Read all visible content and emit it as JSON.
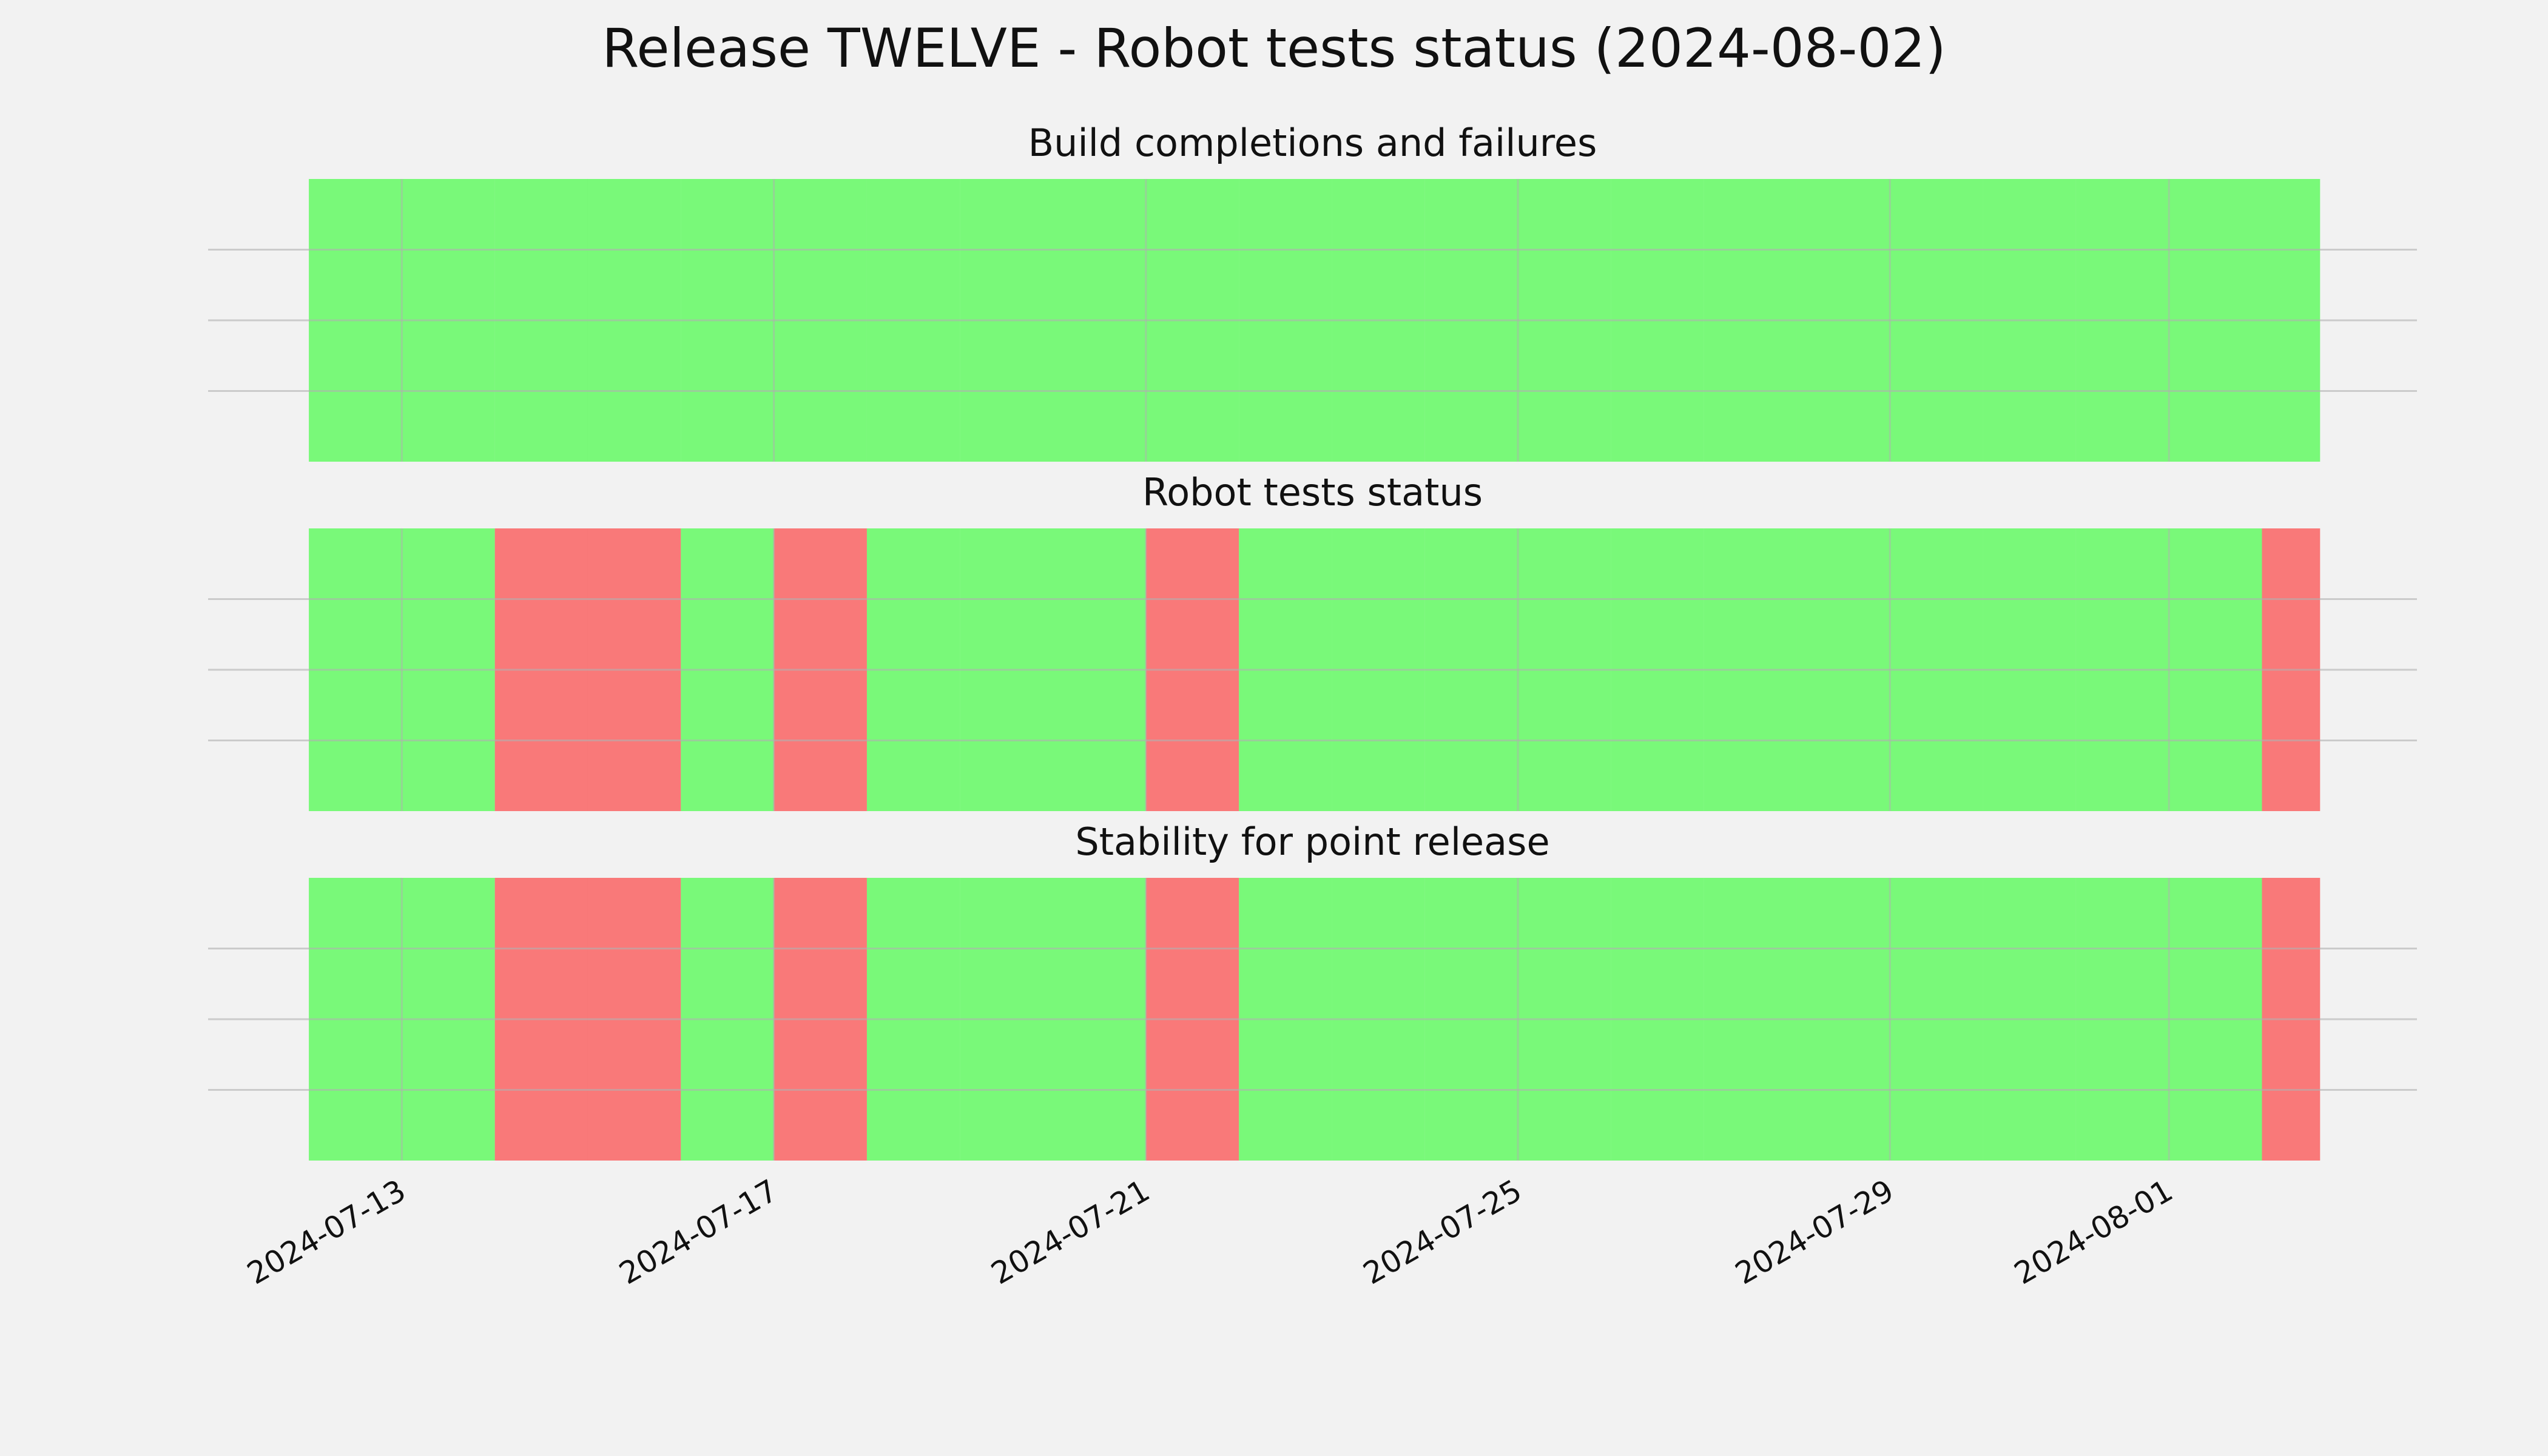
{
  "title": "Release TWELVE - Robot tests status (2024-08-02)",
  "chart_data": [
    {
      "type": "timeline",
      "title": "Build completions and failures",
      "x": [
        "2024-07-12",
        "2024-07-13",
        "2024-07-14",
        "2024-07-15",
        "2024-07-16",
        "2024-07-17",
        "2024-07-18",
        "2024-07-19",
        "2024-07-20",
        "2024-07-21",
        "2024-07-22",
        "2024-07-23",
        "2024-07-24",
        "2024-07-25",
        "2024-07-26",
        "2024-07-27",
        "2024-07-28",
        "2024-07-29",
        "2024-07-30",
        "2024-07-31",
        "2024-08-01",
        "2024-08-02"
      ],
      "end": "2024-08-02T15:00",
      "colors": [
        "#00ff00",
        "#00ff00",
        "#00ff00",
        "#00ff00",
        "#00ff00",
        "#00ff00",
        "#00ff00",
        "#00ff00",
        "#00ff00",
        "#00ff00",
        "#00ff00",
        "#00ff00",
        "#00ff00",
        "#00ff00",
        "#00ff00",
        "#00ff00",
        "#00ff00",
        "#00ff00",
        "#00ff00",
        "#00ff00",
        "#00ff00",
        "#00ff00"
      ],
      "alpha": 0.5,
      "xlim": [
        "2024-07-10T22:00",
        "2024-08-03T16:00"
      ],
      "xticks": [
        "2024-07-13",
        "2024-07-17",
        "2024-07-21",
        "2024-07-25",
        "2024-07-29",
        "2024-08-01"
      ],
      "ylim": [
        0,
        1
      ],
      "yticks": [
        0.25,
        0.5,
        0.75
      ],
      "grid": true
    },
    {
      "type": "timeline",
      "title": "Robot tests status",
      "x": [
        "2024-07-12",
        "2024-07-13",
        "2024-07-14",
        "2024-07-15",
        "2024-07-16",
        "2024-07-17",
        "2024-07-18",
        "2024-07-19",
        "2024-07-20",
        "2024-07-21",
        "2024-07-22",
        "2024-07-23",
        "2024-07-24",
        "2024-07-25",
        "2024-07-26",
        "2024-07-27",
        "2024-07-28",
        "2024-07-29",
        "2024-07-30",
        "2024-07-31",
        "2024-08-01",
        "2024-08-02"
      ],
      "end": "2024-08-02T15:00",
      "colors": [
        "#00ff00",
        "#00ff00",
        "#ff0000",
        "#ff0000",
        "#00ff00",
        "#ff0000",
        "#00ff00",
        "#00ff00",
        "#00ff00",
        "#ff0000",
        "#00ff00",
        "#00ff00",
        "#00ff00",
        "#00ff00",
        "#00ff00",
        "#00ff00",
        "#00ff00",
        "#00ff00",
        "#00ff00",
        "#00ff00",
        "#00ff00",
        "#ff0000"
      ],
      "alpha": 0.5,
      "xlim": [
        "2024-07-10T22:00",
        "2024-08-03T16:00"
      ],
      "xticks": [
        "2024-07-13",
        "2024-07-17",
        "2024-07-21",
        "2024-07-25",
        "2024-07-29",
        "2024-08-01"
      ],
      "ylim": [
        0,
        1
      ],
      "yticks": [
        0.25,
        0.5,
        0.75
      ],
      "grid": true
    },
    {
      "type": "timeline",
      "title": "Stability for point release",
      "x": [
        "2024-07-12",
        "2024-07-13",
        "2024-07-14",
        "2024-07-15",
        "2024-07-16",
        "2024-07-17",
        "2024-07-18",
        "2024-07-19",
        "2024-07-20",
        "2024-07-21",
        "2024-07-22",
        "2024-07-23",
        "2024-07-24",
        "2024-07-25",
        "2024-07-26",
        "2024-07-27",
        "2024-07-28",
        "2024-07-29",
        "2024-07-30",
        "2024-07-31",
        "2024-08-01",
        "2024-08-02"
      ],
      "end": "2024-08-02T15:00",
      "colors": [
        "#00ff00",
        "#00ff00",
        "#ff0000",
        "#ff0000",
        "#00ff00",
        "#ff0000",
        "#00ff00",
        "#00ff00",
        "#00ff00",
        "#ff0000",
        "#00ff00",
        "#00ff00",
        "#00ff00",
        "#00ff00",
        "#00ff00",
        "#00ff00",
        "#00ff00",
        "#00ff00",
        "#00ff00",
        "#00ff00",
        "#00ff00",
        "#ff0000"
      ],
      "alpha": 0.5,
      "xlim": [
        "2024-07-10T22:00",
        "2024-08-03T16:00"
      ],
      "xticks": [
        "2024-07-13",
        "2024-07-17",
        "2024-07-21",
        "2024-07-25",
        "2024-07-29",
        "2024-08-01"
      ],
      "ylim": [
        0,
        1
      ],
      "yticks": [
        0.25,
        0.5,
        0.75
      ],
      "grid": true
    }
  ]
}
